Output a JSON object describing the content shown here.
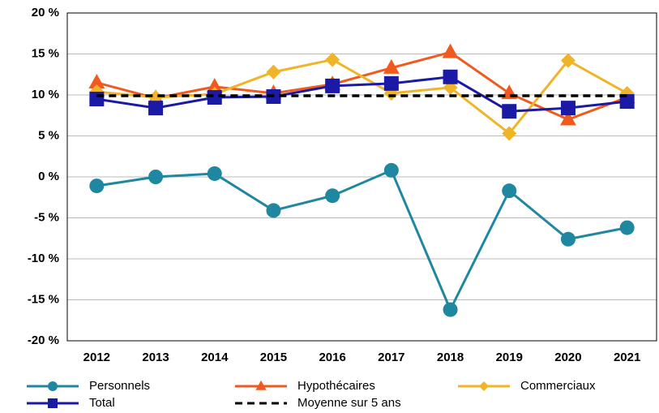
{
  "chart_data": {
    "type": "line",
    "categories": [
      "2012",
      "2013",
      "2014",
      "2015",
      "2016",
      "2017",
      "2018",
      "2019",
      "2020",
      "2021"
    ],
    "series": [
      {
        "name": "Personnels",
        "color": "#1f87a0",
        "marker": "circle",
        "values": [
          -1.1,
          0,
          0.4,
          -4.1,
          -2.3,
          0.8,
          -16.2,
          -1.7,
          -7.6,
          -6.2
        ]
      },
      {
        "name": "Hypothécaires",
        "color": "#f05a1e",
        "marker": "triangle",
        "values": [
          11.5,
          9.6,
          11.0,
          10.2,
          11.3,
          13.3,
          15.2,
          10.2,
          7.0,
          9.7
        ]
      },
      {
        "name": "Commerciaux",
        "color": "#f0b428",
        "marker": "diamond",
        "values": [
          10.4,
          9.7,
          10.1,
          12.8,
          14.3,
          10.2,
          10.9,
          5.3,
          14.2,
          10.2
        ]
      },
      {
        "name": "Total",
        "color": "#1a1aa6",
        "marker": "square",
        "values": [
          9.5,
          8.4,
          9.7,
          9.8,
          11.1,
          11.4,
          12.2,
          8.0,
          8.4,
          9.2
        ]
      },
      {
        "name": "Moyenne sur 5 ans",
        "color": "#000000",
        "dashed": true,
        "values": [
          9.9,
          9.9,
          9.9,
          9.9,
          9.9,
          9.9,
          9.9,
          9.9,
          9.9,
          9.9
        ]
      }
    ],
    "ylim": [
      -20,
      20
    ],
    "yticks": [
      {
        "value": -20,
        "label": "-20 %"
      },
      {
        "value": -15,
        "label": "-15 %"
      },
      {
        "value": -10,
        "label": "-10 %"
      },
      {
        "value": -5,
        "label": "-5 %"
      },
      {
        "value": 0,
        "label": "0 %"
      },
      {
        "value": 5,
        "label": "5 %"
      },
      {
        "value": 10,
        "label": "10 %"
      },
      {
        "value": 15,
        "label": "15 %"
      },
      {
        "value": 20,
        "label": "20 %"
      }
    ],
    "grid": true,
    "legend": "bottom"
  }
}
